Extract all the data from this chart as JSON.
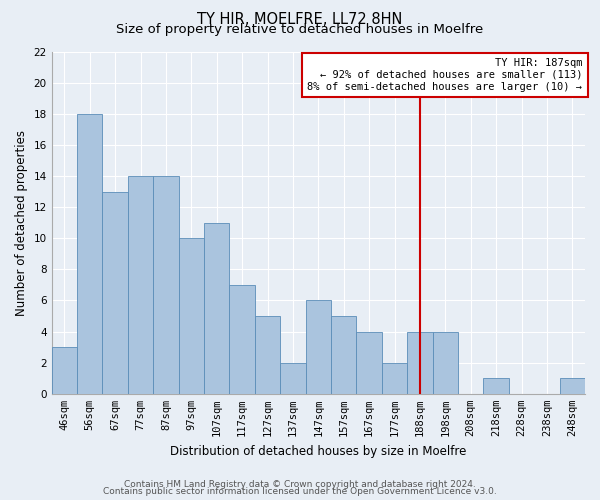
{
  "title": "TY HIR, MOELFRE, LL72 8HN",
  "subtitle": "Size of property relative to detached houses in Moelfre",
  "xlabel": "Distribution of detached houses by size in Moelfre",
  "ylabel": "Number of detached properties",
  "categories": [
    "46sqm",
    "56sqm",
    "67sqm",
    "77sqm",
    "87sqm",
    "97sqm",
    "107sqm",
    "117sqm",
    "127sqm",
    "137sqm",
    "147sqm",
    "157sqm",
    "167sqm",
    "177sqm",
    "188sqm",
    "198sqm",
    "208sqm",
    "218sqm",
    "228sqm",
    "238sqm",
    "248sqm"
  ],
  "values": [
    3,
    18,
    13,
    14,
    14,
    10,
    11,
    7,
    5,
    2,
    6,
    5,
    4,
    2,
    4,
    4,
    0,
    1,
    0,
    0,
    1
  ],
  "bar_color": "#aac4de",
  "bar_edge_color": "#5b8db8",
  "background_color": "#e8eef5",
  "grid_color": "#ffffff",
  "vline_x_index": 14,
  "vline_color": "#cc0000",
  "annotation_title": "TY HIR: 187sqm",
  "annotation_line1": "← 92% of detached houses are smaller (113)",
  "annotation_line2": "8% of semi-detached houses are larger (10) →",
  "annotation_box_color": "#cc0000",
  "ylim": [
    0,
    22
  ],
  "yticks": [
    0,
    2,
    4,
    6,
    8,
    10,
    12,
    14,
    16,
    18,
    20,
    22
  ],
  "footer1": "Contains HM Land Registry data © Crown copyright and database right 2024.",
  "footer2": "Contains public sector information licensed under the Open Government Licence v3.0.",
  "title_fontsize": 10.5,
  "subtitle_fontsize": 9.5,
  "axis_label_fontsize": 8.5,
  "tick_fontsize": 7.5,
  "footer_fontsize": 6.5
}
